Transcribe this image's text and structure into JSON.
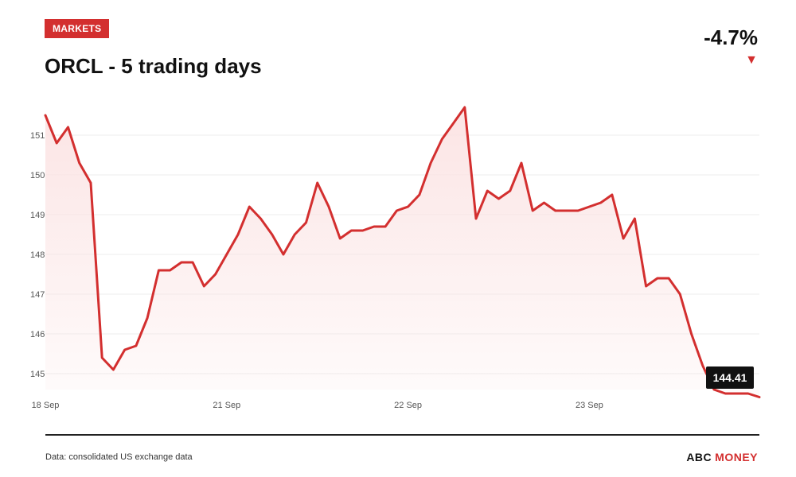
{
  "header": {
    "section_badge": "MARKETS",
    "title": "ORCL - 5 trading days",
    "change": "-4.7%",
    "change_arrow": "▼"
  },
  "footer": {
    "source": "Data: consolidated US exchange data",
    "brand_part1": "ABC",
    "brand_part2": "MONEY"
  },
  "colors": {
    "accent": "#d32f2f",
    "line": "#d32f2f",
    "area_fill": "#fbe3e3",
    "grid": "#ececec"
  },
  "chart_data": {
    "type": "area",
    "title": "ORCL - 5 trading days",
    "ylim": [
      144.6,
      151.6
    ],
    "grid": true,
    "y_ticks": [
      145,
      146,
      147,
      148,
      149,
      150,
      151
    ],
    "x_ticks": [
      {
        "label": "18 Sep",
        "index": 0
      },
      {
        "label": "21 Sep",
        "index": 16
      },
      {
        "label": "22 Sep",
        "index": 32
      },
      {
        "label": "23 Sep",
        "index": 48
      }
    ],
    "values": [
      151.5,
      150.8,
      151.2,
      150.3,
      149.8,
      145.4,
      145.1,
      145.6,
      145.7,
      146.4,
      147.6,
      147.6,
      147.8,
      147.8,
      147.2,
      147.5,
      148.0,
      148.5,
      149.2,
      148.9,
      148.5,
      148.0,
      148.5,
      148.8,
      149.8,
      149.2,
      148.4,
      148.6,
      148.6,
      148.7,
      148.7,
      149.1,
      149.2,
      149.5,
      150.3,
      150.9,
      151.3,
      151.7,
      148.9,
      149.6,
      149.4,
      149.6,
      150.3,
      149.1,
      149.3,
      149.1,
      149.1,
      149.1,
      149.2,
      149.3,
      149.5,
      148.4,
      148.9,
      147.2,
      147.4,
      147.4,
      147.0,
      146.0,
      145.2,
      144.6,
      144.5,
      144.5,
      144.5,
      144.41
    ],
    "last_value_label": "144.41"
  }
}
